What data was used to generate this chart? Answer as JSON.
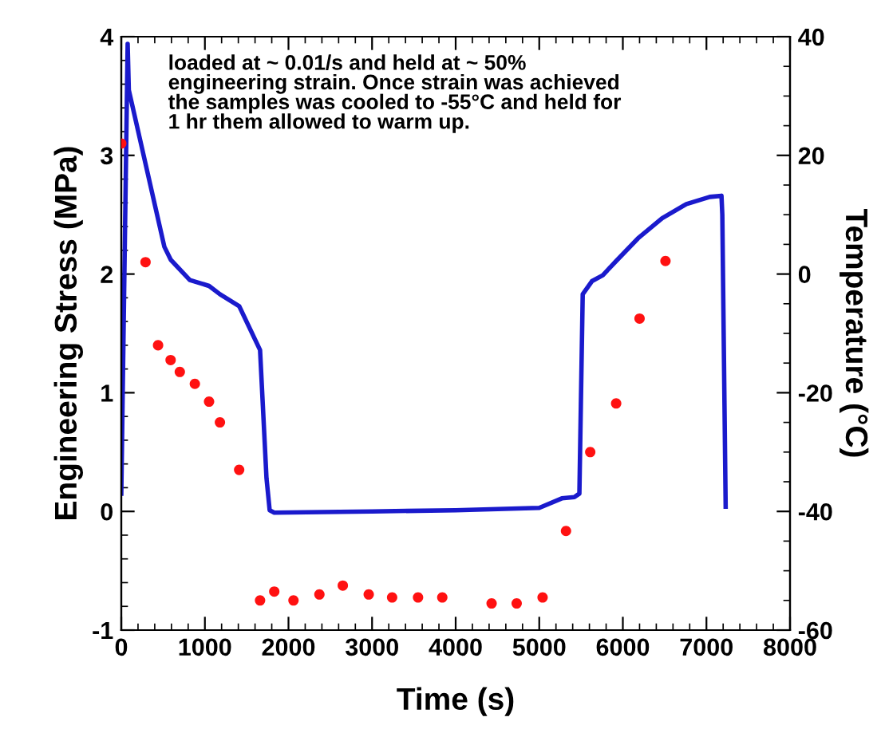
{
  "chart_data": {
    "type": "line",
    "xlabel": "Time (s)",
    "ylabel": "Engineering Stress (MPa)",
    "y2label": "Temperature (°C)",
    "annotations": [
      "loaded at ~ 0.01/s and held at ~ 50%\nengineering strain. Once strain was achieved\nthe samples was cooled to -55°C and held for\n1 hr them allowed to warm up."
    ],
    "xlim": [
      0,
      8000
    ],
    "xticks": [
      0,
      1000,
      2000,
      3000,
      4000,
      5000,
      6000,
      7000,
      8000
    ],
    "ylim": [
      -1,
      4
    ],
    "yticks": [
      -1,
      0,
      1,
      2,
      3,
      4
    ],
    "y2lim": [
      -60,
      40
    ],
    "y2ticks": [
      -60,
      -40,
      -20,
      0,
      20,
      40
    ],
    "grid": false,
    "legend": false,
    "series": [
      {
        "color": "#1a1acc",
        "marker": "none",
        "line_style": "solid",
        "x": [
          0,
          76,
          90,
          515,
          592,
          820,
          1050,
          1180,
          1410,
          1660,
          1737,
          1775,
          1830,
          3000,
          4000,
          5000,
          5270,
          5420,
          5480,
          5520,
          5630,
          5760,
          5920,
          6180,
          6470,
          6760,
          7040,
          7180,
          7190,
          7230
        ],
        "values": [
          0.15,
          3.94,
          3.55,
          2.23,
          2.12,
          1.95,
          1.9,
          1.83,
          1.73,
          1.36,
          0.28,
          0.01,
          -0.01,
          0.0,
          0.01,
          0.03,
          0.11,
          0.12,
          0.15,
          1.83,
          1.94,
          1.99,
          2.11,
          2.3,
          2.47,
          2.59,
          2.65,
          2.66,
          2.5,
          0.04
        ]
      },
      {
        "type": "scatter",
        "axis": "y2",
        "color": "#ff1111",
        "marker": "circle",
        "x": [
          0,
          290,
          440,
          590,
          700,
          880,
          1050,
          1180,
          1410,
          1660,
          1830,
          2060,
          2370,
          2650,
          2960,
          3240,
          3550,
          3840,
          4430,
          4730,
          5040,
          5320,
          5610,
          5920,
          6200,
          6510
        ],
        "values": [
          22,
          2,
          -12,
          -14.5,
          -16.5,
          -18.5,
          -21.5,
          -25,
          -33,
          -55,
          -53.5,
          -55,
          -54,
          -52.5,
          -54,
          -54.5,
          -54.5,
          -54.5,
          -55.5,
          -55.5,
          -54.5,
          -43.3,
          -30,
          -21.8,
          -7.5,
          2.2
        ]
      }
    ]
  }
}
